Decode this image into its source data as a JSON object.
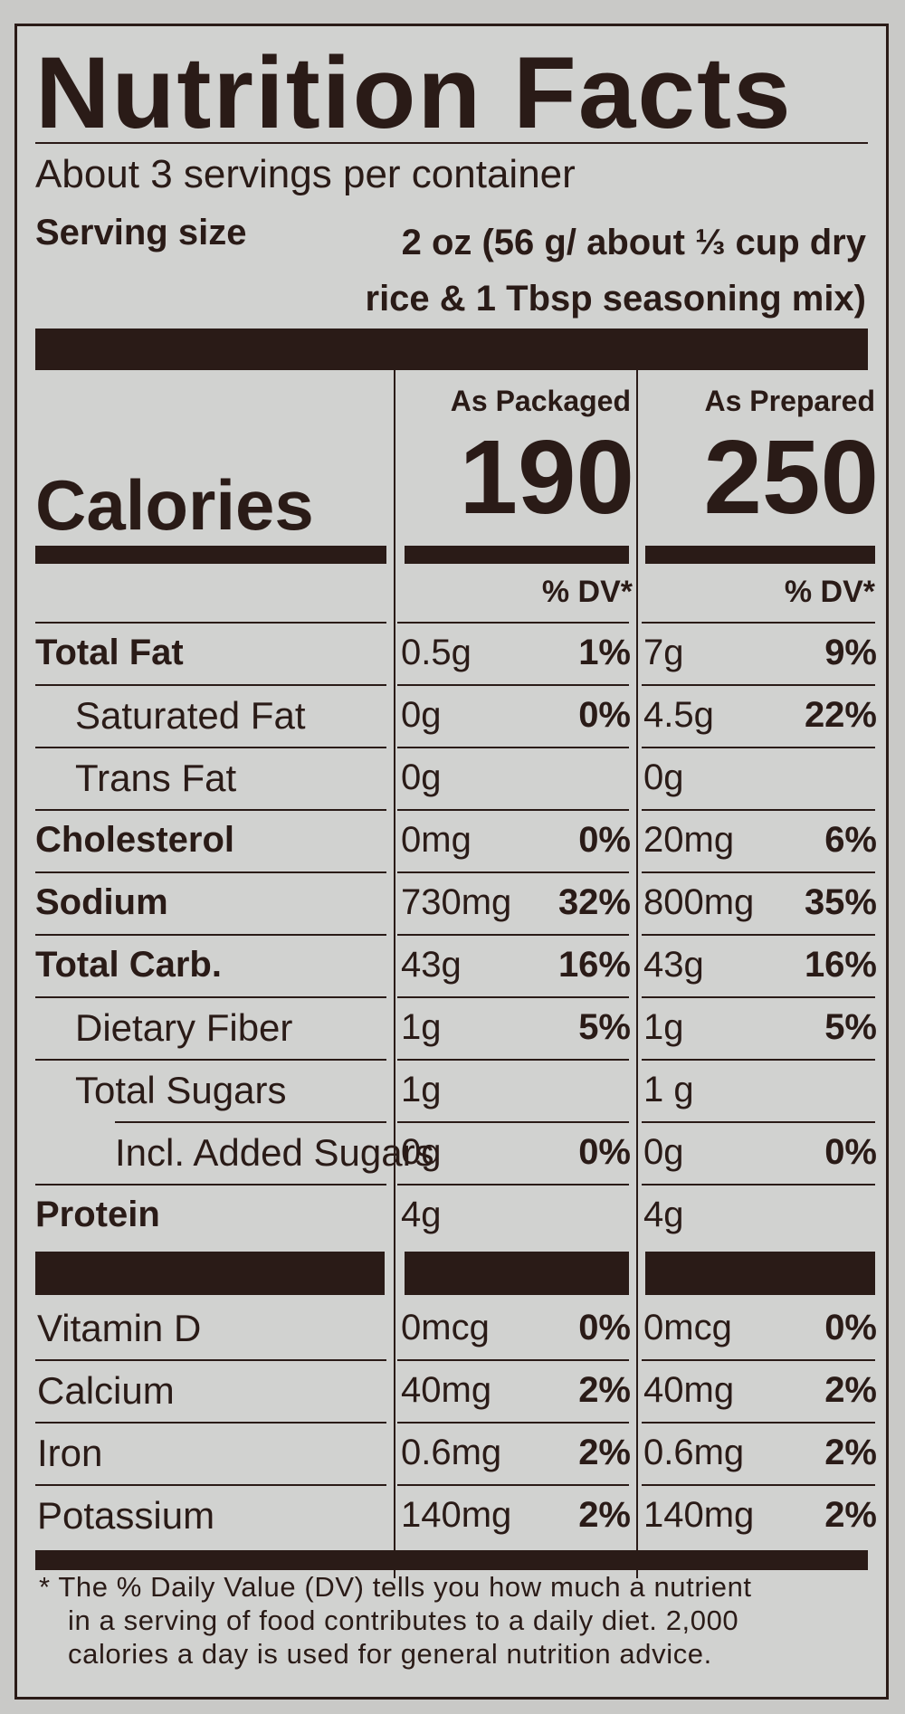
{
  "title": "Nutrition Facts",
  "servings_per_container": "About 3 servings per container",
  "serving_size": {
    "label": "Serving size",
    "line1": "2 oz (56 g/ about ⅓ cup dry",
    "line2": "rice & 1 Tbsp seasoning mix)"
  },
  "calories": {
    "label": "Calories",
    "packaged_header": "As Packaged",
    "prepared_header": "As Prepared",
    "packaged_value": "190",
    "prepared_value": "250"
  },
  "dv_header": "% DV*",
  "nutrients": [
    {
      "label": "Total Fat",
      "bold": true,
      "indent": 0,
      "pk_amt": "0.5g",
      "pk_dv": "1%",
      "pr_amt": "7g",
      "pr_dv": "9%"
    },
    {
      "label": "Saturated Fat",
      "bold": false,
      "indent": 1,
      "pk_amt": "0g",
      "pk_dv": "0%",
      "pr_amt": "4.5g",
      "pr_dv": "22%"
    },
    {
      "label": "Trans Fat",
      "bold": false,
      "indent": 1,
      "pk_amt": "0g",
      "pk_dv": "",
      "pr_amt": "0g",
      "pr_dv": ""
    },
    {
      "label": "Cholesterol",
      "bold": true,
      "indent": 0,
      "pk_amt": "0mg",
      "pk_dv": "0%",
      "pr_amt": "20mg",
      "pr_dv": "6%"
    },
    {
      "label": "Sodium",
      "bold": true,
      "indent": 0,
      "pk_amt": "730mg",
      "pk_dv": "32%",
      "pr_amt": "800mg",
      "pr_dv": "35%"
    },
    {
      "label": "Total Carb.",
      "bold": true,
      "indent": 0,
      "pk_amt": "43g",
      "pk_dv": "16%",
      "pr_amt": "43g",
      "pr_dv": "16%"
    },
    {
      "label": "Dietary Fiber",
      "bold": false,
      "indent": 1,
      "pk_amt": "1g",
      "pk_dv": "5%",
      "pr_amt": "1g",
      "pr_dv": "5%"
    },
    {
      "label": "Total Sugars",
      "bold": false,
      "indent": 1,
      "pk_amt": "1g",
      "pk_dv": "",
      "pr_amt": "1 g",
      "pr_dv": ""
    },
    {
      "label": "Incl. Added Sugars",
      "bold": false,
      "indent": 2,
      "pk_amt": "0g",
      "pk_dv": "0%",
      "pr_amt": "0g",
      "pr_dv": "0%"
    },
    {
      "label": "Protein",
      "bold": true,
      "indent": 0,
      "pk_amt": "4g",
      "pk_dv": "",
      "pr_amt": "4g",
      "pr_dv": ""
    }
  ],
  "vitamins": [
    {
      "label": "Vitamin D",
      "pk_amt": "0mcg",
      "pk_dv": "0%",
      "pr_amt": "0mcg",
      "pr_dv": "0%"
    },
    {
      "label": "Calcium",
      "pk_amt": "40mg",
      "pk_dv": "2%",
      "pr_amt": "40mg",
      "pr_dv": "2%"
    },
    {
      "label": "Iron",
      "pk_amt": "0.6mg",
      "pk_dv": "2%",
      "pr_amt": "0.6mg",
      "pr_dv": "2%"
    },
    {
      "label": "Potassium",
      "pk_amt": "140mg",
      "pk_dv": "2%",
      "pr_amt": "140mg",
      "pr_dv": "2%"
    }
  ],
  "footnote": {
    "line1": "*  The % Daily Value (DV) tells you how much a nutrient",
    "line2": "in a serving of food contributes to a daily diet. 2,000",
    "line3": "calories a day is used for general nutrition advice."
  }
}
